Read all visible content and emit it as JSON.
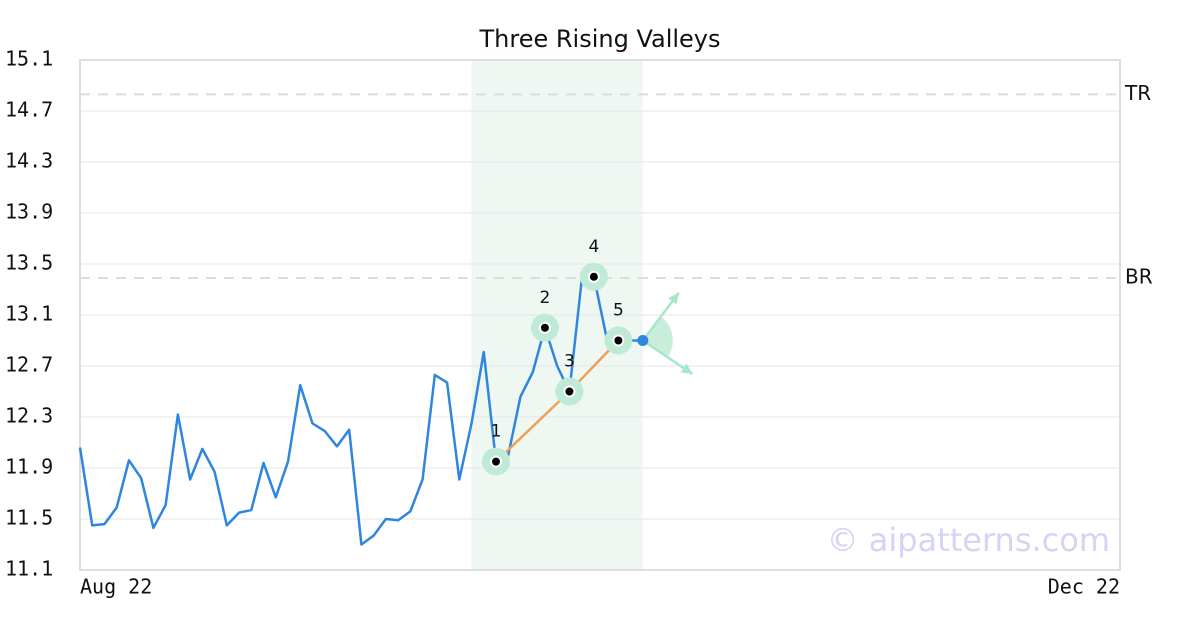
{
  "chart_data": {
    "type": "line",
    "title": "Three Rising Valleys",
    "x": [
      0,
      1,
      2,
      3,
      4,
      5,
      6,
      7,
      8,
      9,
      10,
      11,
      12,
      13,
      14,
      15,
      16,
      17,
      18,
      19,
      20,
      21,
      22,
      23,
      24,
      25,
      26,
      27,
      28,
      29,
      30,
      31,
      32,
      33,
      34,
      35,
      36,
      37,
      38,
      39,
      40,
      41,
      42,
      43,
      44,
      45,
      46
    ],
    "values": [
      12.06,
      11.45,
      11.46,
      11.59,
      11.96,
      11.82,
      11.43,
      11.61,
      12.32,
      11.81,
      12.05,
      11.87,
      11.45,
      11.55,
      11.57,
      11.94,
      11.67,
      11.95,
      12.55,
      12.25,
      12.19,
      12.07,
      12.2,
      11.3,
      11.37,
      11.5,
      11.49,
      11.56,
      11.81,
      12.63,
      12.57,
      11.81,
      12.25,
      12.81,
      11.95,
      12.0,
      12.46,
      12.65,
      13.0,
      12.7,
      12.5,
      13.37,
      13.4,
      12.94,
      12.9,
      12.9,
      12.9
    ],
    "color": "#2e86de",
    "xlim": [
      0,
      85
    ],
    "xticks": [
      {
        "value": 0,
        "label": "Aug 22"
      },
      {
        "value": 85,
        "label": "Dec 22"
      }
    ],
    "ylim": [
      11.1,
      15.1
    ],
    "yticks": [
      11.1,
      11.5,
      11.9,
      12.3,
      12.7,
      13.1,
      13.5,
      13.9,
      14.3,
      14.7,
      15.1
    ],
    "grid": true,
    "levels": [
      {
        "label": "TR",
        "value": 14.83
      },
      {
        "label": "BR",
        "value": 13.39
      }
    ],
    "highlight_x": [
      32,
      46
    ],
    "pattern_points": {
      "x": [
        34,
        38,
        40,
        42,
        44
      ],
      "values": [
        11.95,
        13.0,
        12.5,
        13.4,
        12.9
      ],
      "labels": [
        "1",
        "2",
        "3",
        "4",
        "5"
      ]
    },
    "trend_color": "#f0a050",
    "watermark": "© aipatterns.com"
  }
}
